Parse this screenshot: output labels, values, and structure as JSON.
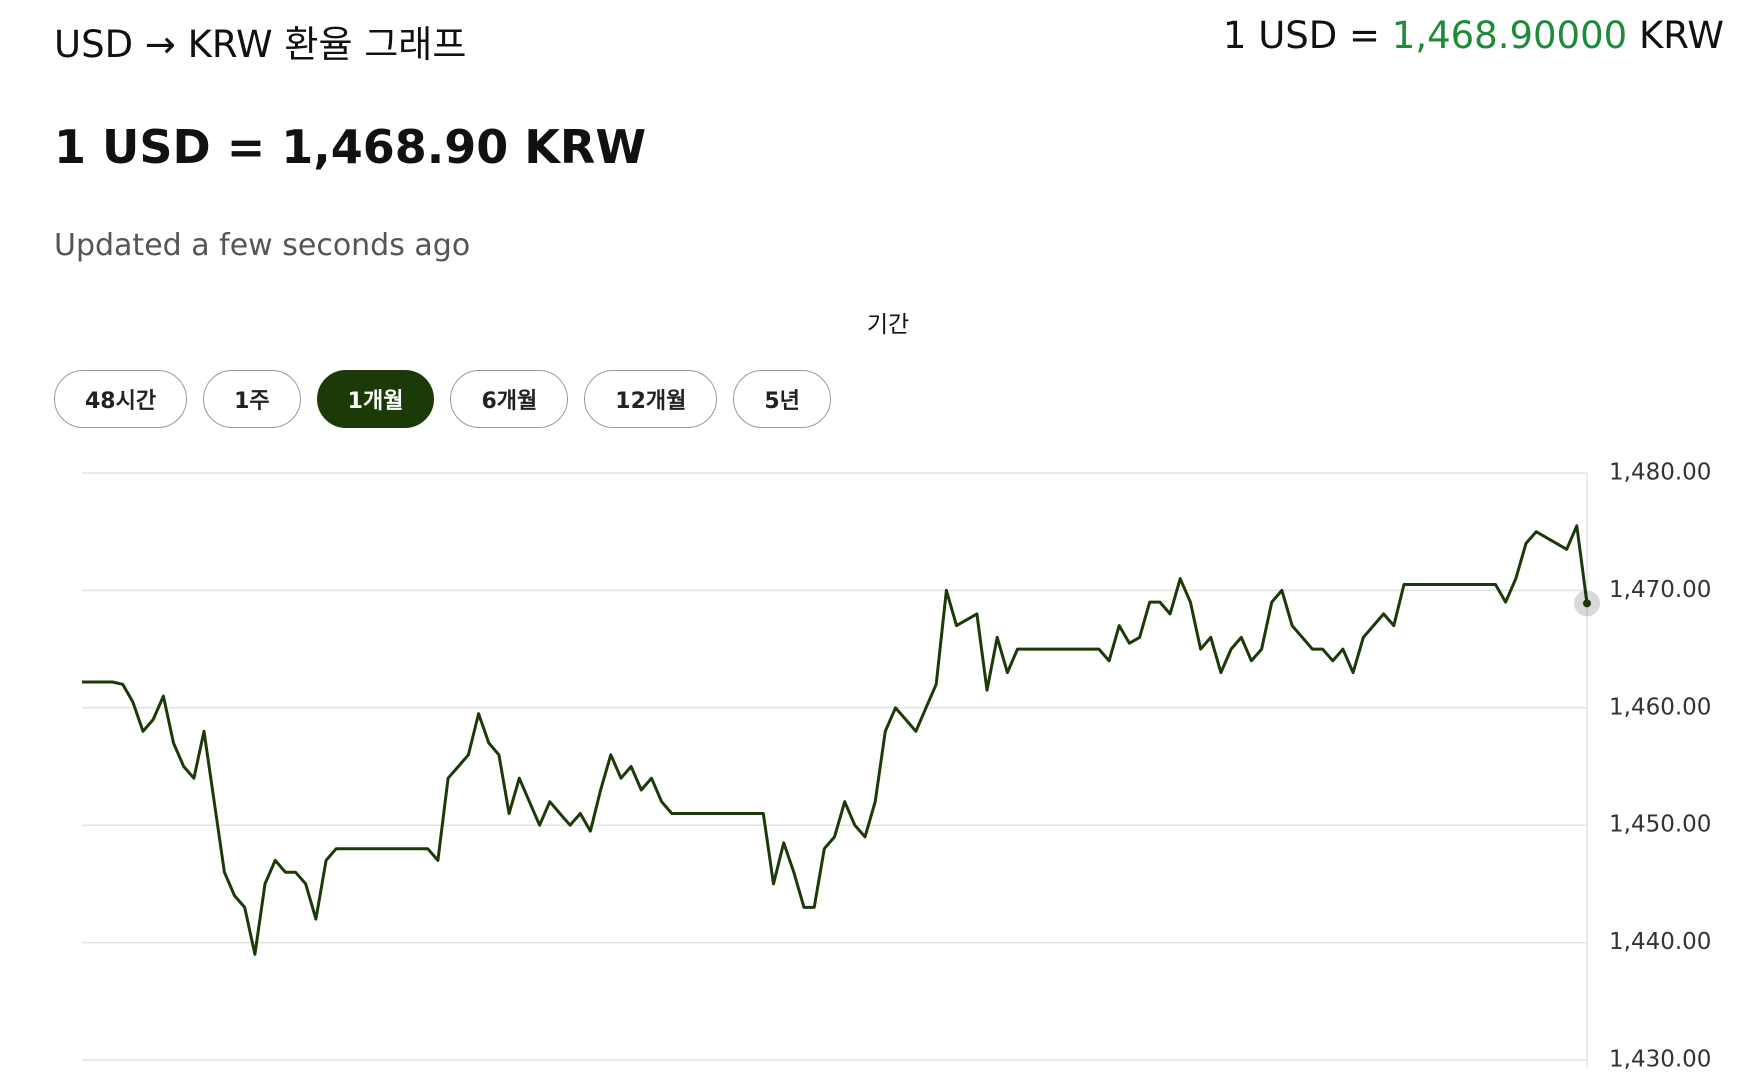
{
  "header": {
    "title": "USD → KRW 환율 그래프",
    "rate_prefix": "1 USD =",
    "rate_value": "1,468.90000",
    "rate_suffix": "KRW",
    "big_rate": "1 USD = 1,468.90 KRW",
    "updated": "Updated a few seconds ago",
    "period_label": "기간"
  },
  "buttons": [
    {
      "label": "48시간",
      "active": false
    },
    {
      "label": "1주",
      "active": false
    },
    {
      "label": "1개월",
      "active": true
    },
    {
      "label": "6개월",
      "active": false
    },
    {
      "label": "12개월",
      "active": false
    },
    {
      "label": "5년",
      "active": false
    }
  ],
  "chart_data": {
    "type": "line",
    "color": "#1b3a08",
    "grid": true,
    "ylim": [
      1430,
      1480
    ],
    "yticks": [
      {
        "value": 1430,
        "label": "1,430.00"
      },
      {
        "value": 1440,
        "label": "1,440.00"
      },
      {
        "value": 1450,
        "label": "1,450.00"
      },
      {
        "value": 1460,
        "label": "1,460.00"
      },
      {
        "value": 1470,
        "label": "1,470.00"
      },
      {
        "value": 1480,
        "label": "1,480.00"
      }
    ],
    "values": [
      1462.2,
      1462.2,
      1462.2,
      1462.2,
      1462,
      1460.5,
      1458,
      1459,
      1461,
      1457,
      1455,
      1454,
      1458,
      1452,
      1446,
      1444,
      1443,
      1439,
      1445,
      1447,
      1446,
      1446,
      1445,
      1442,
      1447,
      1448,
      1448,
      1448,
      1448,
      1448,
      1448,
      1448,
      1448,
      1448,
      1448,
      1447,
      1454,
      1455,
      1456,
      1459.5,
      1457,
      1456,
      1451,
      1454,
      1452,
      1450,
      1452,
      1451,
      1450,
      1451,
      1449.5,
      1453,
      1456,
      1454,
      1455,
      1453,
      1454,
      1452,
      1451,
      1451,
      1451,
      1451,
      1451,
      1451,
      1451,
      1451,
      1451,
      1451,
      1445,
      1448.5,
      1446,
      1443,
      1443,
      1448,
      1449,
      1452,
      1450,
      1449,
      1452,
      1458,
      1460,
      1459,
      1458,
      1460,
      1462,
      1470,
      1467,
      1467.5,
      1468,
      1461.5,
      1466,
      1463,
      1465,
      1465,
      1465,
      1465,
      1465,
      1465,
      1465,
      1465,
      1465,
      1464,
      1467,
      1465.5,
      1466,
      1469,
      1469,
      1468,
      1471,
      1469,
      1465,
      1466,
      1463,
      1465,
      1466,
      1464,
      1465,
      1469,
      1470,
      1467,
      1466,
      1465,
      1465,
      1464,
      1465,
      1463,
      1466,
      1467,
      1468,
      1467,
      1470.5,
      1470.5,
      1470.5,
      1470.5,
      1470.5,
      1470.5,
      1470.5,
      1470.5,
      1470.5,
      1470.5,
      1469,
      1471,
      1474,
      1475,
      1474.5,
      1474,
      1473.5,
      1475.5,
      1468.9
    ]
  }
}
